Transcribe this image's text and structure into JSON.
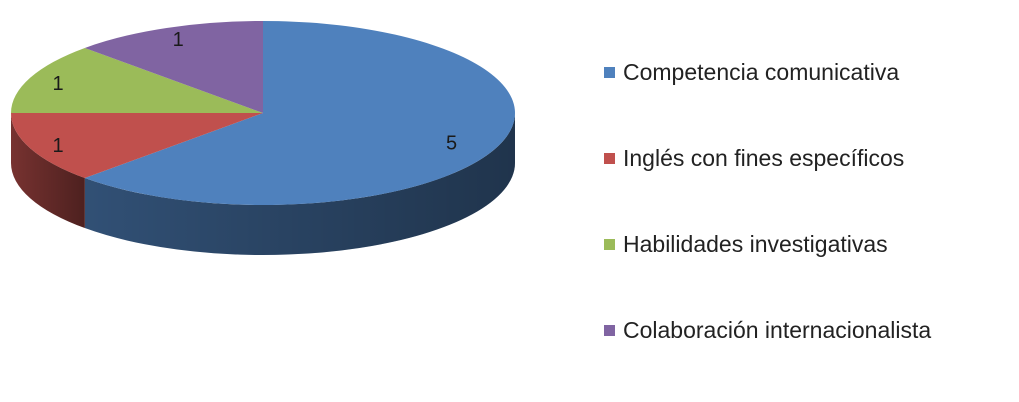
{
  "chart_data": {
    "type": "pie",
    "style": "3d",
    "title": "",
    "categories": [
      "Competencia comunicativa",
      "Inglés con fines específicos",
      "Habilidades investigativas",
      "Colaboración internacionalista"
    ],
    "values": [
      5,
      1,
      1,
      1
    ],
    "data_labels": [
      "5",
      "1",
      "1",
      "1"
    ],
    "colors": [
      "#4F81BD",
      "#C0504D",
      "#9BBB59",
      "#8064A2"
    ],
    "legend_position": "right"
  }
}
